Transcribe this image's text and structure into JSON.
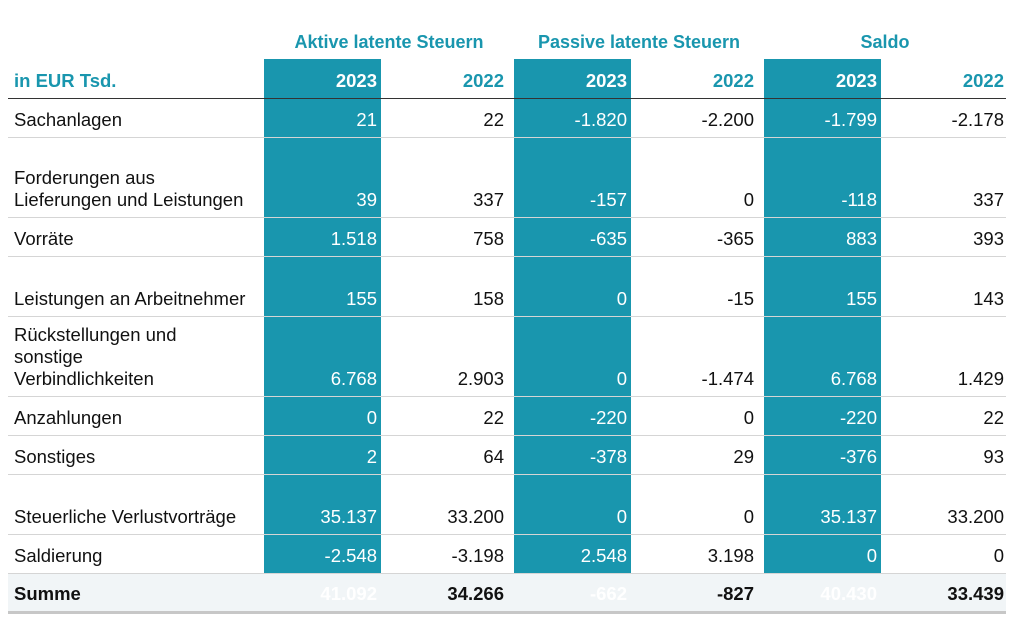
{
  "group_headers": [
    "Aktive latente Steuern",
    "Passive latente Steuern",
    "Saldo"
  ],
  "columns": {
    "unit_label": "in EUR Tsd.",
    "years": [
      "2023",
      "2022",
      "2023",
      "2022",
      "2023",
      "2022"
    ]
  },
  "rows": [
    {
      "label": "Sachanlagen",
      "values": [
        "21",
        "22",
        "-1.820",
        "-2.200",
        "-1.799",
        "-2.178"
      ]
    },
    {
      "label": "Forderungen aus Lieferungen und Leistungen",
      "values": [
        "39",
        "337",
        "-157",
        "0",
        "-118",
        "337"
      ]
    },
    {
      "label": "Vorräte",
      "values": [
        "1.518",
        "758",
        "-635",
        "-365",
        "883",
        "393"
      ]
    },
    {
      "label": "Leistungen an Arbeitnehmer",
      "values": [
        "155",
        "158",
        "0",
        "-15",
        "155",
        "143"
      ]
    },
    {
      "label": "Rückstellungen und sonstige Verbindlichkeiten",
      "values": [
        "6.768",
        "2.903",
        "0",
        "-1.474",
        "6.768",
        "1.429"
      ]
    },
    {
      "label": "Anzahlungen",
      "values": [
        "0",
        "22",
        "-220",
        "0",
        "-220",
        "22"
      ]
    },
    {
      "label": "Sonstiges",
      "values": [
        "2",
        "64",
        "-378",
        "29",
        "-376",
        "93"
      ]
    },
    {
      "label": "Steuerliche Verlustvorträge",
      "values": [
        "35.137",
        "33.200",
        "0",
        "0",
        "35.137",
        "33.200"
      ]
    },
    {
      "label": "Saldierung",
      "values": [
        "-2.548",
        "-3.198",
        "2.548",
        "3.198",
        "0",
        "0"
      ]
    }
  ],
  "total": {
    "label": "Summe",
    "values": [
      "41.092",
      "34.266",
      "-662",
      "-827",
      "40.430",
      "33.439"
    ]
  },
  "colors": {
    "accent": "#1996ae",
    "total_background": "#f1f5f7"
  }
}
